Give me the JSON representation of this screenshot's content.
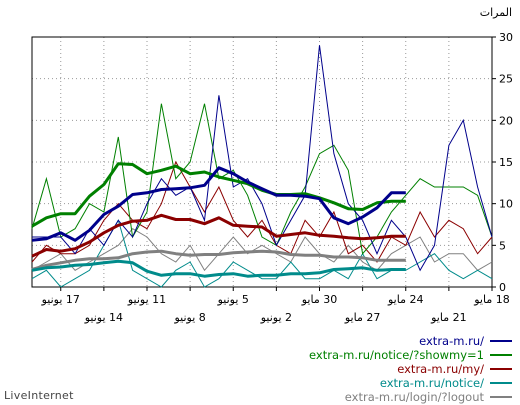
{
  "brand": "LiveInternet",
  "chart_data": {
    "type": "line",
    "ylabel": "المرات",
    "ylim": [
      0,
      30
    ],
    "y_ticks": [
      0,
      5,
      10,
      15,
      20,
      25,
      30
    ],
    "grid": true,
    "x_direction": "right-to-left",
    "x_days": 32,
    "x_ticks": [
      {
        "day": 0,
        "label": "18 مايو",
        "row": 1
      },
      {
        "day": 3,
        "label": "21 مايو",
        "row": 2
      },
      {
        "day": 6,
        "label": "24 مايو",
        "row": 1
      },
      {
        "day": 9,
        "label": "27 مايو",
        "row": 2
      },
      {
        "day": 12,
        "label": "30 مايو",
        "row": 1
      },
      {
        "day": 15,
        "label": "2 يونيو",
        "row": 2
      },
      {
        "day": 18,
        "label": "5 يونيو",
        "row": 1
      },
      {
        "day": 21,
        "label": "8 يونيو",
        "row": 2
      },
      {
        "day": 24,
        "label": "11 يونيو",
        "row": 1
      },
      {
        "day": 27,
        "label": "14 يونيو",
        "row": 2
      },
      {
        "day": 30,
        "label": "17 يونيو",
        "row": 1
      }
    ],
    "legend_position": "bottom-right",
    "series": [
      {
        "name": "extra-m.ru/",
        "color": "#00008b",
        "values": [
          6,
          12,
          20,
          17,
          5,
          2,
          6,
          8,
          4,
          8,
          10,
          16,
          29,
          11,
          8,
          5,
          10,
          13,
          12,
          23,
          8,
          12,
          11,
          13,
          10,
          6,
          8,
          5,
          7,
          4,
          6,
          6,
          6
        ],
        "trend": [
          null,
          null,
          null,
          null,
          null,
          null,
          11.3,
          11.3,
          9.5,
          8.4,
          7.6,
          8.3,
          10.6,
          10.9,
          11,
          11,
          11.8,
          12.6,
          13.6,
          14.3,
          12.2,
          11.9,
          11.8,
          11.7,
          11.3,
          11.1,
          9.7,
          8.7,
          6.8,
          5.6,
          6.5,
          5.8,
          5.6
        ]
      },
      {
        "name": "extra-m.ru/notice/?showmy=1",
        "color": "#008000",
        "values": [
          6,
          11,
          12,
          12,
          12,
          13,
          11,
          9,
          6,
          4,
          14,
          17,
          16,
          12,
          9,
          5,
          6,
          11,
          14,
          13,
          22,
          15,
          13,
          22,
          9,
          6,
          18,
          9,
          10,
          7,
          6,
          13,
          7
        ],
        "trend": [
          null,
          null,
          null,
          null,
          null,
          null,
          10.3,
          10.3,
          10.1,
          9.3,
          9.4,
          10.1,
          10.7,
          11.2,
          11.1,
          11.1,
          11.6,
          12.4,
          12.8,
          13.2,
          13.8,
          13.6,
          14.5,
          14,
          13.6,
          14.7,
          14.8,
          12.3,
          10.9,
          8.8,
          8.8,
          8.3,
          7.3
        ]
      },
      {
        "name": "extra-m.ru/my/",
        "color": "#8b0000",
        "values": [
          6,
          4,
          7,
          8,
          6,
          9,
          5,
          6,
          3,
          5,
          4,
          9,
          6,
          8,
          4,
          5,
          8,
          6,
          8,
          12,
          9,
          12,
          15,
          10,
          7,
          8,
          10,
          8,
          5,
          4,
          4,
          5,
          3
        ],
        "trend": [
          null,
          null,
          null,
          null,
          null,
          null,
          6.1,
          6.1,
          5.9,
          5.8,
          5.9,
          6.1,
          6.2,
          6.5,
          6.3,
          6.1,
          7.2,
          7.3,
          7.4,
          8.3,
          7.6,
          8.1,
          8.1,
          8.6,
          8,
          7.9,
          7.4,
          6.5,
          5.4,
          4.6,
          4.3,
          4.5,
          3.7
        ]
      },
      {
        "name": "extra-m.ru/notice/",
        "color": "#008b8b",
        "values": [
          1,
          2,
          1,
          2,
          4,
          3,
          2,
          2,
          1,
          4,
          1,
          2,
          1,
          1,
          3,
          1,
          1,
          2,
          3,
          1,
          0,
          3,
          2,
          0,
          1,
          2,
          8,
          5,
          2,
          1,
          0,
          2,
          1
        ],
        "trend": [
          null,
          null,
          null,
          null,
          null,
          null,
          2.1,
          2.1,
          2,
          2.3,
          2.2,
          2.1,
          1.7,
          1.6,
          1.6,
          1.4,
          1.4,
          1.3,
          1.6,
          1.5,
          1.3,
          1.6,
          1.6,
          1.4,
          1.9,
          2.9,
          3.1,
          2.9,
          2.7,
          2.6,
          2.4,
          2.3,
          2
        ]
      },
      {
        "name": "extra-m.ru/login/?logout",
        "color": "#808080",
        "values": [
          3,
          2,
          4,
          4,
          3,
          6,
          5,
          4,
          2,
          3,
          5,
          3,
          4,
          6,
          3,
          4,
          5,
          4,
          6,
          4,
          2,
          5,
          3,
          4,
          6,
          7,
          5,
          4,
          3,
          2,
          4,
          3,
          2
        ],
        "trend": [
          null,
          null,
          null,
          null,
          null,
          null,
          3.2,
          3.2,
          3.2,
          3.5,
          3.6,
          3.6,
          3.8,
          3.8,
          3.9,
          4.2,
          4.3,
          4.2,
          4.1,
          3.9,
          3.9,
          3.8,
          4,
          4.3,
          4.2,
          4,
          3.5,
          3.4,
          3.4,
          3.2,
          2.9,
          2.6,
          2.1
        ]
      }
    ]
  }
}
